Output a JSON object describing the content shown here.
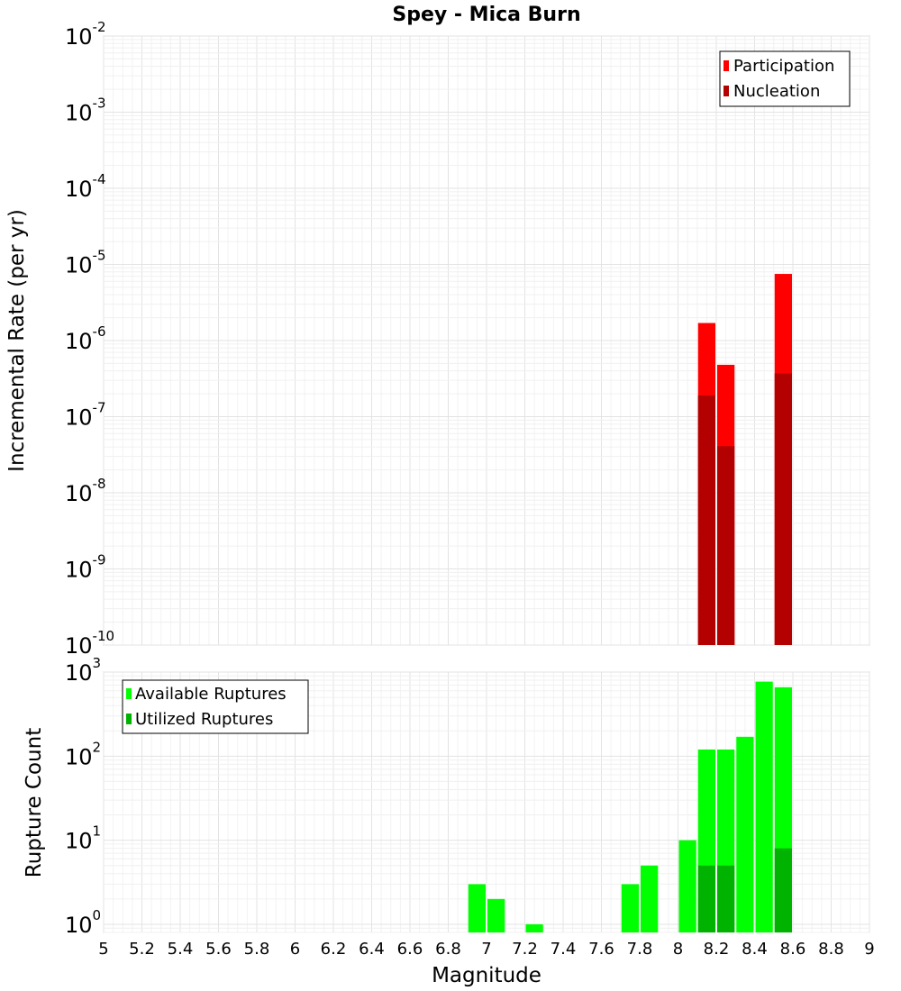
{
  "title": "Spey - Mica Burn",
  "colors": {
    "participation": "#ff0000",
    "nucleation": "#b30000",
    "available": "#00ff00",
    "utilized": "#00b300",
    "grid": "#e8e8e8",
    "frame": "#b8b8b8"
  },
  "chart_data": [
    {
      "type": "bar",
      "title": "Spey - Mica Burn",
      "xlabel": "Magnitude",
      "ylabel": "Incremental Rate (per yr)",
      "yscale": "log",
      "xlim": [
        5,
        9
      ],
      "ylim": [
        1e-10,
        0.01
      ],
      "x_ticks": [
        "5",
        "5.2",
        "5.4",
        "5.6",
        "5.8",
        "6",
        "6.2",
        "6.4",
        "6.6",
        "6.8",
        "7",
        "7.2",
        "7.4",
        "7.6",
        "7.8",
        "8",
        "8.2",
        "8.4",
        "8.6",
        "8.8",
        "9"
      ],
      "y_tick_exponents": [
        "-2",
        "-3",
        "-4",
        "-5",
        "-6",
        "-7",
        "-8",
        "-9",
        "-10"
      ],
      "y_tick_base": "10",
      "legend": [
        "Participation",
        "Nucleation"
      ],
      "legend_position": "top-right",
      "series": [
        {
          "name": "Participation",
          "color": "#ff0000",
          "x": [
            8.15,
            8.25,
            8.55
          ],
          "values": [
            1.7e-06,
            4.8e-07,
            7.5e-06
          ]
        },
        {
          "name": "Nucleation",
          "color": "#b30000",
          "x": [
            8.15,
            8.25,
            8.55
          ],
          "values": [
            1.9e-07,
            4.1e-08,
            3.7e-07
          ]
        }
      ]
    },
    {
      "type": "bar",
      "xlabel": "Magnitude",
      "ylabel": "Rupture Count",
      "yscale": "log",
      "xlim": [
        5,
        9
      ],
      "ylim": [
        0.8,
        1000
      ],
      "x_ticks": [
        "5",
        "5.2",
        "5.4",
        "5.6",
        "5.8",
        "6",
        "6.2",
        "6.4",
        "6.6",
        "6.8",
        "7",
        "7.2",
        "7.4",
        "7.6",
        "7.8",
        "8",
        "8.2",
        "8.4",
        "8.6",
        "8.8",
        "9"
      ],
      "y_tick_exponents": [
        "0",
        "1",
        "2",
        "3"
      ],
      "y_tick_base": "10",
      "legend": [
        "Available Ruptures",
        "Utilized Ruptures"
      ],
      "legend_position": "top-left",
      "series": [
        {
          "name": "Available Ruptures",
          "color": "#00ff00",
          "x": [
            6.95,
            7.05,
            7.25,
            7.75,
            7.85,
            8.05,
            8.15,
            8.25,
            8.35,
            8.45,
            8.55
          ],
          "values": [
            3,
            2,
            1,
            3,
            5,
            10,
            120,
            120,
            170,
            770,
            660
          ]
        },
        {
          "name": "Utilized Ruptures",
          "color": "#00b300",
          "x": [
            8.15,
            8.25,
            8.55
          ],
          "values": [
            5,
            5,
            8
          ]
        }
      ]
    }
  ]
}
